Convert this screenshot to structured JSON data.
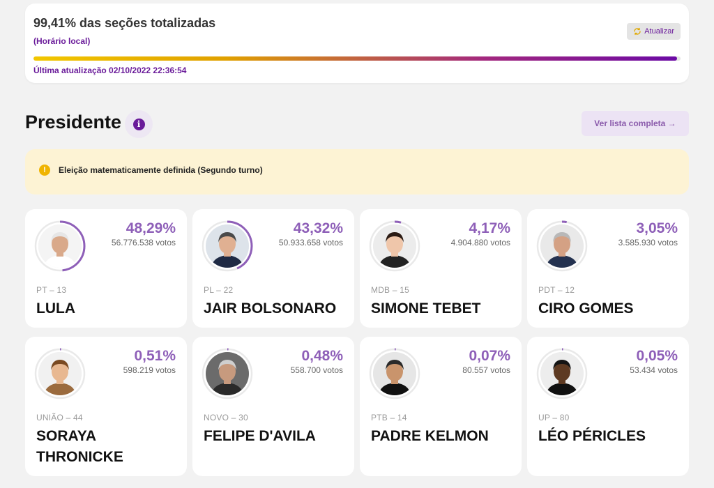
{
  "status": {
    "title": "99,41% das seções totalizadas",
    "subtitle": "(Horário local)",
    "refresh_label": "Atualizar",
    "progress_percent": 99.41,
    "last_update": "Última atualização 02/10/2022 22:36:54"
  },
  "section": {
    "title": "Presidente",
    "info_label": "i",
    "list_button_label": "Ver lista completa →"
  },
  "alert": {
    "icon": "!",
    "text": "Eleição matematicamente definida (Segundo turno)"
  },
  "colors": {
    "accent": "#6a1b9a",
    "ring": "#8e5fb8",
    "alert_bg": "#fdf3d4",
    "alert_icon": "#f0b400"
  },
  "candidates": [
    {
      "percent": "48,29%",
      "share": 48.29,
      "votes": "56.776.538 votos",
      "party": "PT – 13",
      "name": "LULA",
      "skin": "#d9a98a",
      "hair": "#e6e6e6",
      "bg": "#f4f4f4",
      "shirt": "#ffffff"
    },
    {
      "percent": "43,32%",
      "share": 43.32,
      "votes": "50.933.658 votos",
      "party": "PL – 22",
      "name": "JAIR BOLSONARO",
      "skin": "#e0b092",
      "hair": "#4a4a4a",
      "bg": "#dde3ea",
      "shirt": "#1f2a44"
    },
    {
      "percent": "4,17%",
      "share": 4.17,
      "votes": "4.904.880 votos",
      "party": "MDB – 15",
      "name": "SIMONE TEBET",
      "skin": "#efc6aa",
      "hair": "#2b1b14",
      "bg": "#ececec",
      "shirt": "#222222"
    },
    {
      "percent": "3,05%",
      "share": 3.05,
      "votes": "3.585.930 votos",
      "party": "PDT – 12",
      "name": "CIRO GOMES",
      "skin": "#d4a184",
      "hair": "#b8b8b8",
      "bg": "#e9e9e9",
      "shirt": "#23314f"
    },
    {
      "percent": "0,51%",
      "share": 0.51,
      "votes": "598.219 votos",
      "party": "UNIÃO – 44",
      "name": "SORAYA THRONICKE",
      "skin": "#e8b891",
      "hair": "#7a4a22",
      "bg": "#f1f1f1",
      "shirt": "#9b6b3e"
    },
    {
      "percent": "0,48%",
      "share": 0.48,
      "votes": "558.700 votos",
      "party": "NOVO – 30",
      "name": "FELIPE D'AVILA",
      "skin": "#c79a7e",
      "hair": "#cfcfcf",
      "bg": "#6b6b6b",
      "shirt": "#2a2a2a"
    },
    {
      "percent": "0,07%",
      "share": 0.07,
      "votes": "80.557 votos",
      "party": "PTB – 14",
      "name": "PADRE KELMON",
      "skin": "#c9946c",
      "hair": "#2a2a2a",
      "bg": "#e6e6e6",
      "shirt": "#111111"
    },
    {
      "percent": "0,05%",
      "share": 0.05,
      "votes": "53.434 votos",
      "party": "UP – 80",
      "name": "LÉO PÉRICLES",
      "skin": "#5e3a22",
      "hair": "#141414",
      "bg": "#ededed",
      "shirt": "#111111"
    }
  ]
}
